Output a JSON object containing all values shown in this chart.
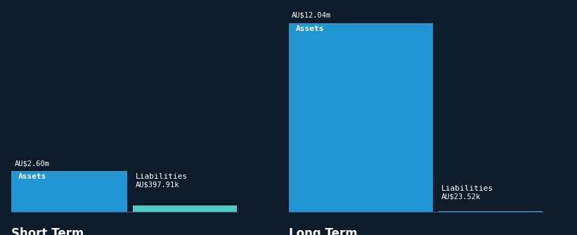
{
  "background_color": "#0d1b2a",
  "short_term": {
    "assets_value": 2.6,
    "assets_label": "AU$2.60m",
    "assets_color": "#2196d3",
    "liabilities_value": 0.39791,
    "liabilities_label": "AU$397.91k",
    "liabilities_color": "#4ecdc4",
    "assets_bar_label": "Assets",
    "liabilities_bar_label": "Liabilities",
    "section_label": "Short Term"
  },
  "long_term": {
    "assets_value": 12.04,
    "assets_label": "AU$12.04m",
    "assets_color": "#2196d3",
    "liabilities_value": 0.02352,
    "liabilities_label": "AU$23.52k",
    "liabilities_color": "#2196d3",
    "assets_bar_label": "Assets",
    "liabilities_bar_label": "Liabilities",
    "section_label": "Long Term"
  },
  "text_color": "#ffffff",
  "label_fontsize": 8,
  "section_fontsize": 12,
  "value_fontsize": 7.5,
  "bar_label_fontsize": 8
}
